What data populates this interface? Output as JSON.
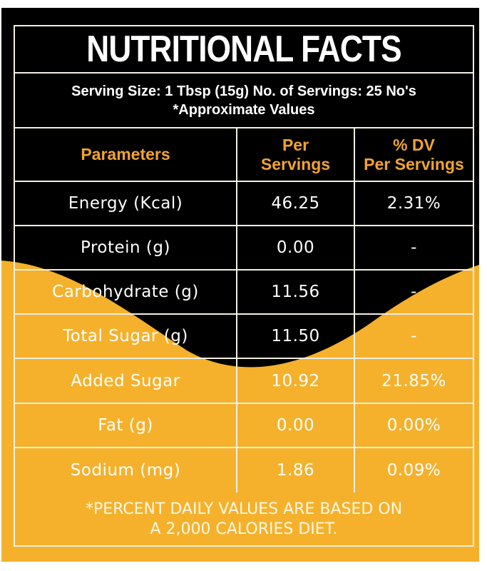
{
  "title": "NUTRITIONAL FACTS",
  "serving_line": "Serving Size: 1 Tbsp (15g) No. of Servings: 25 No's",
  "approx_note": "*Approximate Values",
  "headers": {
    "parameters": "Parameters",
    "per_servings_1": "Per",
    "per_servings_2": "Servings",
    "dv_1": "% DV",
    "dv_2": "Per Servings"
  },
  "rows": [
    {
      "param": "Energy (Kcal)",
      "per": "46.25",
      "dv": "2.31%"
    },
    {
      "param": "Protein (g)",
      "per": "0.00",
      "dv": "-"
    },
    {
      "param": "Carbohydrate (g)",
      "per": "11.56",
      "dv": "-"
    },
    {
      "param": "Total Sugar (g)",
      "per": "11.50",
      "dv": "-"
    },
    {
      "param": "Added Sugar",
      "per": "10.92",
      "dv": "21.85%"
    },
    {
      "param": "Fat (g)",
      "per": "0.00",
      "dv": "0.00%"
    },
    {
      "param": "Sodium (mg)",
      "per": "1.86",
      "dv": "0.09%"
    }
  ],
  "footnote_1": "*PERCENT DAILY VALUES ARE BASED ON",
  "footnote_2": "A 2,000 CALORIES DIET.",
  "colors": {
    "black": "#000000",
    "yellow": "#f5b12c",
    "header_orange": "#f2a431"
  }
}
